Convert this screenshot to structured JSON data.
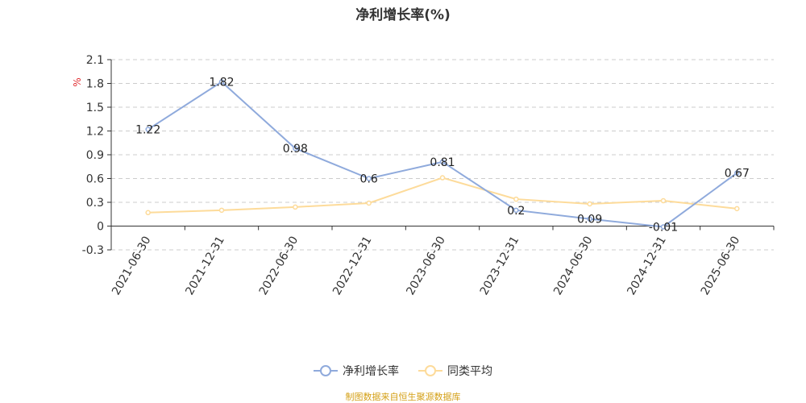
{
  "chart_data": {
    "type": "line",
    "title": "净利增长率(%)",
    "ylabel": "%",
    "ylim": [
      -0.3,
      2.1
    ],
    "yticks": [
      -0.3,
      0,
      0.3,
      0.6,
      0.9,
      1.2,
      1.5,
      1.8,
      2.1
    ],
    "ytick_labels": [
      "-0.3",
      "0",
      "0.3",
      "0.6",
      "0.9",
      "1.2",
      "1.5",
      "1.8",
      "2.1"
    ],
    "categories": [
      "2021-06-30",
      "2021-12-31",
      "2022-06-30",
      "2022-12-31",
      "2023-06-30",
      "2023-12-31",
      "2024-06-30",
      "2024-12-31",
      "2025-06-30"
    ],
    "series": [
      {
        "name": "净利增长率",
        "color": "#8faadc",
        "values": [
          1.22,
          1.82,
          0.98,
          0.6,
          0.81,
          0.2,
          0.09,
          -0.01,
          0.67
        ],
        "labels": [
          "1.22",
          "1.82",
          "0.98",
          "0.6",
          "0.81",
          "0.2",
          "0.09",
          "-0.01",
          "0.67"
        ]
      },
      {
        "name": "同类平均",
        "color": "#fddb9a",
        "values": [
          0.17,
          0.2,
          0.24,
          0.29,
          0.61,
          0.34,
          0.28,
          0.32,
          0.22
        ]
      }
    ],
    "grid": true,
    "legend": "bottom"
  },
  "source": "制图数据来自恒生聚源数据库"
}
